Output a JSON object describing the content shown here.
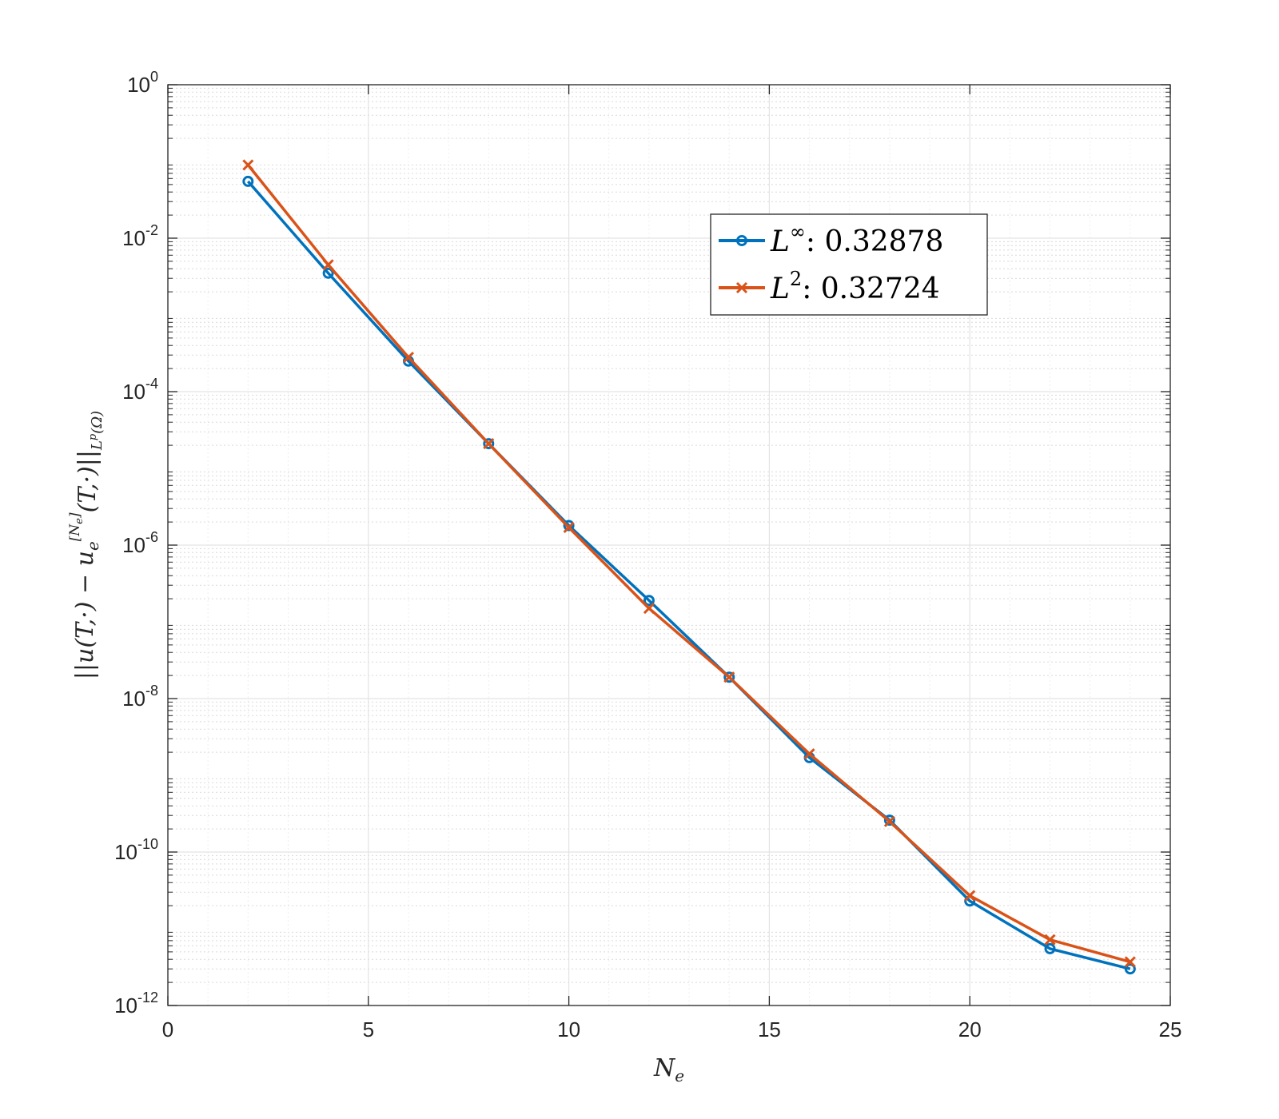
{
  "chart_data": {
    "type": "line",
    "title": "",
    "xlabel": "N",
    "xlabel_sub": "e",
    "ylabel": "||u(T,·) − u",
    "ylabel_sub": "e",
    "ylabel_sup": "[N",
    "ylabel_sup_sub": "e",
    "ylabel_sup_end": "]",
    "ylabel_tail": "(T,·)||",
    "ylabel_norm_sub": "L",
    "ylabel_norm_sup": "p",
    "ylabel_norm_end": "(Ω)",
    "xlim": [
      0,
      25
    ],
    "ylim": [
      1e-12,
      1
    ],
    "yscale": "log",
    "grid": true,
    "minor_grid": true,
    "legend_position": "top-right",
    "x_ticks": [
      "0",
      "5",
      "10",
      "15",
      "20",
      "25"
    ],
    "y_ticks": [
      {
        "base": "10",
        "exp": "0"
      },
      {
        "base": "10",
        "exp": "-2"
      },
      {
        "base": "10",
        "exp": "-4"
      },
      {
        "base": "10",
        "exp": "-6"
      },
      {
        "base": "10",
        "exp": "-8"
      },
      {
        "base": "10",
        "exp": "-10"
      },
      {
        "base": "10",
        "exp": "-12"
      }
    ],
    "x": [
      2,
      4,
      6,
      8,
      10,
      12,
      14,
      16,
      18,
      20,
      22,
      24
    ],
    "series": [
      {
        "name": "L",
        "name_sup": "∞",
        "name_rest": ": 0.32878",
        "color": "#0072BD",
        "marker": "circle",
        "values": [
          0.055,
          0.0035,
          0.00025,
          2.1e-05,
          1.8e-06,
          1.9e-07,
          1.9e-08,
          1.7e-09,
          2.6e-10,
          2.3e-11,
          5.5e-12,
          3e-12
        ]
      },
      {
        "name": "L",
        "name_sup": "2",
        "name_rest": ": 0.32724",
        "color": "#D95319",
        "marker": "x",
        "values": [
          0.09,
          0.0045,
          0.00028,
          2.1e-05,
          1.7e-06,
          1.5e-07,
          1.9e-08,
          1.9e-09,
          2.5e-10,
          2.7e-11,
          7.2e-12,
          3.7e-12
        ]
      }
    ]
  }
}
